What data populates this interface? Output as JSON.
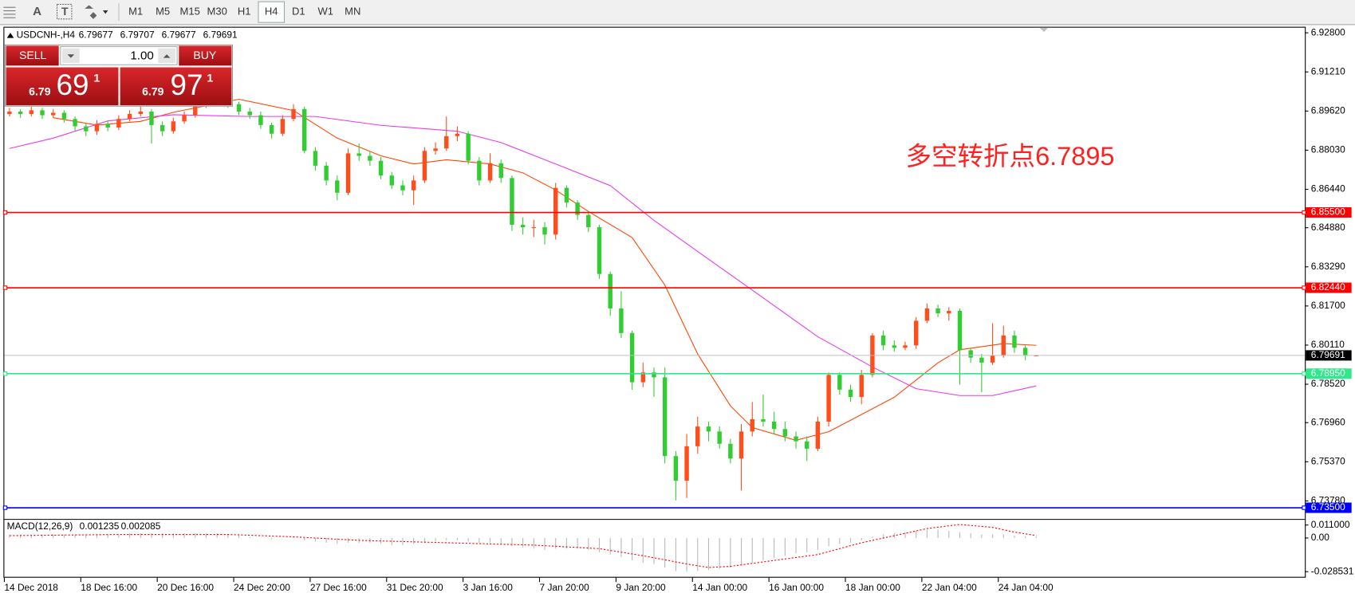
{
  "toolbar": {
    "text_tool": "A",
    "label_tool": "T",
    "timeframes": [
      "M1",
      "M5",
      "M15",
      "M30",
      "H1",
      "H4",
      "D1",
      "W1",
      "MN"
    ],
    "active": "H4"
  },
  "trade_panel": {
    "sell": "SELL",
    "buy": "BUY",
    "lots": "1.00",
    "bid": {
      "big": "6.79",
      "pips": "69",
      "point": "1"
    },
    "ask": {
      "big": "6.79",
      "pips": "97",
      "point": "1"
    }
  },
  "chart_data": {
    "type": "candlestick",
    "symbol": "USDCNH-,H4",
    "annotation": {
      "text": "多空转折点6.7895",
      "color": "#ff2020"
    },
    "categories": [
      "14 Dec 2018",
      null,
      null,
      null,
      null,
      null,
      null,
      "18 Dec 16:00",
      null,
      null,
      null,
      null,
      null,
      null,
      "20 Dec 16:00",
      null,
      null,
      null,
      null,
      null,
      null,
      "24 Dec 20:00",
      null,
      null,
      null,
      null,
      null,
      null,
      "27 Dec 16:00",
      null,
      null,
      null,
      null,
      null,
      null,
      "31 Dec 20:00",
      null,
      null,
      null,
      null,
      null,
      null,
      "3 Jan 16:00",
      null,
      null,
      null,
      null,
      null,
      null,
      "7 Jan 20:00",
      null,
      null,
      null,
      null,
      null,
      null,
      "9 Jan 20:00",
      null,
      null,
      null,
      null,
      null,
      null,
      "14 Jan 00:00",
      null,
      null,
      null,
      null,
      null,
      null,
      "16 Jan 00:00",
      null,
      null,
      null,
      null,
      null,
      null,
      "18 Jan 00:00",
      null,
      null,
      null,
      null,
      null,
      null,
      "22 Jan 04:00",
      null,
      null,
      null,
      null,
      null,
      null,
      "24 Jan 04:00",
      null,
      null,
      null
    ],
    "open": [
      6.895,
      6.896,
      6.895,
      6.8965,
      6.8945,
      6.8955,
      6.893,
      6.89,
      6.888,
      6.891,
      6.8895,
      6.893,
      6.895,
      6.896,
      6.8905,
      6.888,
      6.892,
      6.8945,
      6.8985,
      6.9,
      6.901,
      6.899,
      6.896,
      6.8945,
      6.8905,
      6.887,
      6.893,
      6.897,
      6.88,
      6.874,
      6.868,
      6.863,
      6.879,
      6.878,
      6.876,
      6.87,
      6.866,
      6.864,
      6.868,
      6.88,
      6.881,
      6.886,
      6.887,
      6.876,
      6.868,
      6.875,
      6.869,
      6.85,
      6.849,
      6.849,
      6.846,
      6.865,
      6.859,
      6.854,
      6.849,
      6.83,
      6.816,
      6.806,
      6.786,
      6.79,
      6.788,
      6.756,
      6.746,
      6.76,
      6.768,
      6.766,
      6.761,
      6.755,
      6.766,
      6.771,
      6.77,
      6.767,
      6.764,
      6.762,
      6.759,
      6.77,
      6.789,
      6.783,
      6.78,
      6.789,
      6.805,
      6.801,
      6.8,
      6.801,
      6.811,
      6.816,
      6.814,
      6.815,
      6.799,
      6.796,
      6.794,
      6.797,
      6.805,
      6.8,
      6.79677
    ],
    "high": [
      6.8975,
      6.897,
      6.898,
      6.8975,
      6.897,
      6.8965,
      6.894,
      6.8915,
      6.8925,
      6.892,
      6.8945,
      6.8965,
      6.898,
      6.897,
      6.892,
      6.8935,
      6.896,
      6.9,
      6.9015,
      6.9025,
      6.902,
      6.9,
      6.8975,
      6.896,
      6.8915,
      6.8945,
      6.899,
      6.898,
      6.8815,
      6.8755,
      6.87,
      6.881,
      6.883,
      6.88,
      6.8775,
      6.8715,
      6.868,
      6.87,
      6.8815,
      6.8835,
      6.894,
      6.89,
      6.888,
      6.8775,
      6.879,
      6.8765,
      6.87,
      6.853,
      6.852,
      6.851,
      6.867,
      6.866,
      6.86,
      6.8555,
      6.85,
      6.831,
      6.823,
      6.807,
      6.794,
      6.792,
      6.792,
      6.758,
      6.765,
      6.772,
      6.77,
      6.768,
      6.763,
      6.769,
      6.778,
      6.781,
      6.774,
      6.77,
      6.766,
      6.764,
      6.772,
      6.79,
      6.79,
      6.785,
      6.791,
      6.806,
      6.807,
      6.803,
      6.8025,
      6.8125,
      6.818,
      6.8175,
      6.8165,
      6.816,
      6.8,
      6.7975,
      6.81,
      6.809,
      6.807,
      6.801,
      6.79707
    ],
    "low": [
      6.894,
      6.8935,
      6.894,
      6.893,
      6.8935,
      6.8915,
      6.888,
      6.886,
      6.8865,
      6.888,
      6.8885,
      6.892,
      6.894,
      6.883,
      6.886,
      6.887,
      6.891,
      6.8935,
      6.8975,
      6.899,
      6.8975,
      6.8945,
      6.893,
      6.889,
      6.885,
      6.886,
      6.892,
      6.879,
      6.872,
      6.866,
      6.86,
      6.862,
      6.876,
      6.874,
      6.8685,
      6.8645,
      6.862,
      6.858,
      6.867,
      6.8785,
      6.88,
      6.884,
      6.8745,
      6.866,
      6.867,
      6.867,
      6.8475,
      6.846,
      6.845,
      6.842,
      6.844,
      6.857,
      6.852,
      6.847,
      6.828,
      6.813,
      6.804,
      6.783,
      6.784,
      6.78,
      6.753,
      6.738,
      6.739,
      6.757,
      6.762,
      6.759,
      6.753,
      6.742,
      6.764,
      6.768,
      6.765,
      6.762,
      6.759,
      6.754,
      6.758,
      6.768,
      6.781,
      6.778,
      6.777,
      6.788,
      6.799,
      6.7985,
      6.799,
      6.7995,
      6.81,
      6.8125,
      6.811,
      6.785,
      6.794,
      6.782,
      6.793,
      6.796,
      6.798,
      6.795,
      6.79677
    ],
    "close": [
      6.896,
      6.895,
      6.8965,
      6.8945,
      6.8955,
      6.893,
      6.89,
      6.888,
      6.891,
      6.8895,
      6.893,
      6.895,
      6.896,
      6.8905,
      6.888,
      6.892,
      6.8945,
      6.8985,
      6.9,
      6.901,
      6.899,
      6.896,
      6.8945,
      6.8905,
      6.887,
      6.893,
      6.897,
      6.88,
      6.874,
      6.868,
      6.863,
      6.879,
      6.878,
      6.876,
      6.87,
      6.866,
      6.864,
      6.868,
      6.88,
      6.881,
      6.886,
      6.887,
      6.876,
      6.868,
      6.875,
      6.869,
      6.85,
      6.849,
      6.849,
      6.846,
      6.865,
      6.859,
      6.854,
      6.849,
      6.83,
      6.816,
      6.806,
      6.786,
      6.79,
      6.788,
      6.756,
      6.746,
      6.76,
      6.768,
      6.766,
      6.761,
      6.755,
      6.766,
      6.771,
      6.77,
      6.767,
      6.764,
      6.762,
      6.759,
      6.77,
      6.789,
      6.783,
      6.78,
      6.789,
      6.805,
      6.801,
      6.8,
      6.801,
      6.811,
      6.816,
      6.814,
      6.815,
      6.799,
      6.796,
      6.794,
      6.797,
      6.805,
      6.8,
      6.797,
      6.79691
    ],
    "up_color": "#ff4d1c",
    "down_color": "#32cd32",
    "ylim": [
      6.7308,
      6.9301
    ],
    "yticks": [
      {
        "value": 6.928,
        "label": "6.92800"
      },
      {
        "value": 6.9121,
        "label": "6.91210"
      },
      {
        "value": 6.8962,
        "label": "6.89620"
      },
      {
        "value": 6.8803,
        "label": "6.88030"
      },
      {
        "value": 6.8644,
        "label": "6.86440"
      },
      {
        "value": 6.8488,
        "label": "6.84880"
      },
      {
        "value": 6.8329,
        "label": "6.83290"
      },
      {
        "value": 6.817,
        "label": "6.81700"
      },
      {
        "value": 6.8011,
        "label": "6.80110"
      },
      {
        "value": 6.7852,
        "label": "6.78520"
      },
      {
        "value": 6.7696,
        "label": "6.76960"
      },
      {
        "value": 6.7537,
        "label": "6.75370"
      },
      {
        "value": 6.7378,
        "label": "6.73780"
      }
    ],
    "lines": [
      {
        "color": "#ff4500",
        "x": [
          4,
          8,
          12,
          15,
          21,
          26,
          30,
          34,
          37,
          40,
          44,
          47,
          50,
          53,
          57,
          60,
          63,
          66,
          68,
          72,
          75,
          78,
          81,
          83,
          85,
          87,
          91,
          94
        ],
        "values": [
          6.8935,
          6.8905,
          6.892,
          6.8957,
          6.901,
          6.8964,
          6.8852,
          6.878,
          6.8747,
          6.8764,
          6.8747,
          6.8711,
          6.8641,
          6.8554,
          6.8448,
          6.8255,
          6.7975,
          6.7764,
          6.7676,
          6.7624,
          6.7659,
          6.7729,
          6.7799,
          6.7869,
          6.7939,
          6.7992,
          6.8017,
          6.801
        ]
      },
      {
        "color": "#e63ce6",
        "x": [
          0,
          4,
          9,
          15,
          22,
          28,
          34,
          41,
          45,
          50,
          55,
          59,
          64,
          69,
          74,
          79,
          83,
          87,
          90,
          94
        ],
        "values": [
          6.881,
          6.8852,
          6.8922,
          6.8947,
          6.894,
          6.894,
          6.8904,
          6.888,
          6.8834,
          6.8747,
          6.8659,
          6.8518,
          6.836,
          6.8203,
          6.8045,
          6.7922,
          6.7834,
          6.7806,
          6.7806,
          6.7845
        ]
      }
    ],
    "hlines": [
      {
        "value": 6.855,
        "label": "6.85500",
        "color": "#ff0000"
      },
      {
        "value": 6.8244,
        "label": "6.82440",
        "color": "#ff0000"
      },
      {
        "value": 6.7895,
        "label": "6.78950",
        "color": "#2ee88a"
      },
      {
        "value": 6.735,
        "label": "6.73500",
        "color": "#0000ff"
      }
    ],
    "current_price": {
      "value": 6.79691,
      "label": "6.79691",
      "color": "#c0c0c0"
    },
    "macd": {
      "title": "MACD(12,26,9)",
      "hist_color": "#b8b8b8",
      "signal_color": "#ff0000",
      "histogram": [
        0.003,
        0.003,
        0.003,
        0.003,
        0.003,
        0.003,
        0.003,
        0.003,
        0.003,
        0.003,
        0.003,
        0.004,
        0.004,
        0.004,
        0.004,
        0.004,
        0.004,
        0.004,
        0.004,
        0.004,
        0.003,
        0.002,
        0.001,
        0.0,
        -0.001,
        0.0,
        0.001,
        -0.002,
        -0.003,
        -0.004,
        -0.005,
        -0.004,
        -0.004,
        -0.004,
        -0.005,
        -0.006,
        -0.006,
        -0.005,
        -0.004,
        -0.003,
        -0.002,
        -0.002,
        -0.003,
        -0.004,
        -0.004,
        -0.005,
        -0.007,
        -0.008,
        -0.009,
        -0.01,
        -0.009,
        -0.009,
        -0.009,
        -0.01,
        -0.012,
        -0.014,
        -0.016,
        -0.019,
        -0.021,
        -0.022,
        -0.025,
        -0.028,
        -0.0285,
        -0.028,
        -0.027,
        -0.026,
        -0.025,
        -0.023,
        -0.021,
        -0.019,
        -0.017,
        -0.015,
        -0.013,
        -0.012,
        -0.01,
        -0.007,
        -0.005,
        -0.004,
        -0.002,
        0.001,
        0.003,
        0.004,
        0.005,
        0.006,
        0.007,
        0.007,
        0.006,
        0.005,
        0.004,
        0.003,
        0.003,
        0.003,
        0.002,
        0.0015,
        0.001235
      ],
      "signal": {
        "x": [
          0,
          10,
          20,
          26,
          32,
          40,
          48,
          54,
          58,
          62,
          64,
          66,
          70,
          74,
          78,
          82,
          84,
          87,
          90,
          92,
          94
        ],
        "values": [
          0.002,
          0.003,
          0.003,
          0.001,
          -0.002,
          -0.004,
          -0.006,
          -0.009,
          -0.015,
          -0.022,
          -0.025,
          -0.024,
          -0.019,
          -0.014,
          -0.004,
          0.004,
          0.008,
          0.0115,
          0.009,
          0.005,
          0.002085
        ]
      },
      "ylim": [
        -0.0336,
        0.0154
      ],
      "yticks": [
        {
          "value": 0.011,
          "label": "0.011000"
        },
        {
          "value": 0,
          "label": "0.00"
        },
        {
          "value": -0.028531,
          "label": "-0.028531"
        }
      ]
    }
  }
}
